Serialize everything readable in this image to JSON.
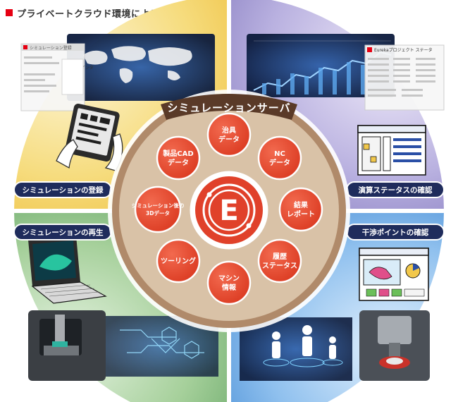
{
  "heading": "プライベートクラウド環境による運用例",
  "server_label": "シミュレーションサーバ",
  "center_logo": "E",
  "quadrants": {
    "top_left": "シミュレーションの登録",
    "top_right": "演算ステータスの確認",
    "bottom_left": "シミュレーションの再生",
    "bottom_right": "干渉ポイントの確認"
  },
  "nodes": [
    {
      "id": "jig",
      "lines": [
        "治具",
        "データ"
      ]
    },
    {
      "id": "nc",
      "lines": [
        "NC",
        "データ"
      ]
    },
    {
      "id": "report",
      "lines": [
        "結果",
        "レポート"
      ]
    },
    {
      "id": "history",
      "lines": [
        "履歴",
        "ステータス"
      ]
    },
    {
      "id": "machine",
      "lines": [
        "マシン",
        "情報"
      ]
    },
    {
      "id": "tooling",
      "lines": [
        "ツーリング"
      ]
    },
    {
      "id": "sim3d",
      "lines": [
        "シミュレーション後の",
        "3Dデータ"
      ]
    },
    {
      "id": "cad",
      "lines": [
        "製品CAD",
        "データ"
      ]
    }
  ],
  "screens": {
    "top_left_title": "シミュレーション登録",
    "top_left_item": "Eureka インタ",
    "top_right_title": "Eurekaプロジェクト ステータ"
  },
  "colors": {
    "accent_red": "#e0412a",
    "server_ring": "#b08a6a",
    "server_fill": "#d9c2a7",
    "pill_navy": "#1f2c5c",
    "q_tl": "#f2c84b",
    "q_tr": "#8f86c7",
    "q_bl": "#6aa96a",
    "q_br": "#4a8fd6"
  }
}
